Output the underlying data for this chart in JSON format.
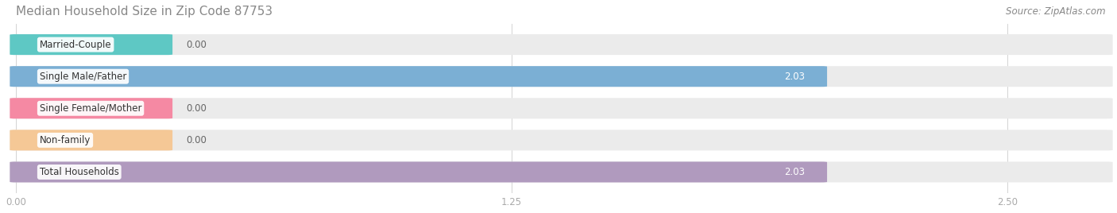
{
  "title": "Median Household Size in Zip Code 87753",
  "source": "Source: ZipAtlas.com",
  "categories": [
    "Married-Couple",
    "Single Male/Father",
    "Single Female/Mother",
    "Non-family",
    "Total Households"
  ],
  "values": [
    0.0,
    2.03,
    0.0,
    0.0,
    2.03
  ],
  "bar_colors": [
    "#5ec8c4",
    "#7bafd4",
    "#f589a3",
    "#f5c896",
    "#b09abe"
  ],
  "bar_bg_color": "#ebebeb",
  "xlim_max": 2.75,
  "xticks": [
    0.0,
    1.25,
    2.5
  ],
  "title_fontsize": 11,
  "source_fontsize": 8.5,
  "bar_label_fontsize": 8.5,
  "category_fontsize": 8.5,
  "tick_fontsize": 8.5,
  "title_color": "#888888",
  "source_color": "#888888",
  "value_color_inside": "#ffffff",
  "value_color_outside": "#666666",
  "bar_height": 0.62,
  "zero_bar_width": 0.38,
  "figsize": [
    14.06,
    2.68
  ],
  "dpi": 100
}
